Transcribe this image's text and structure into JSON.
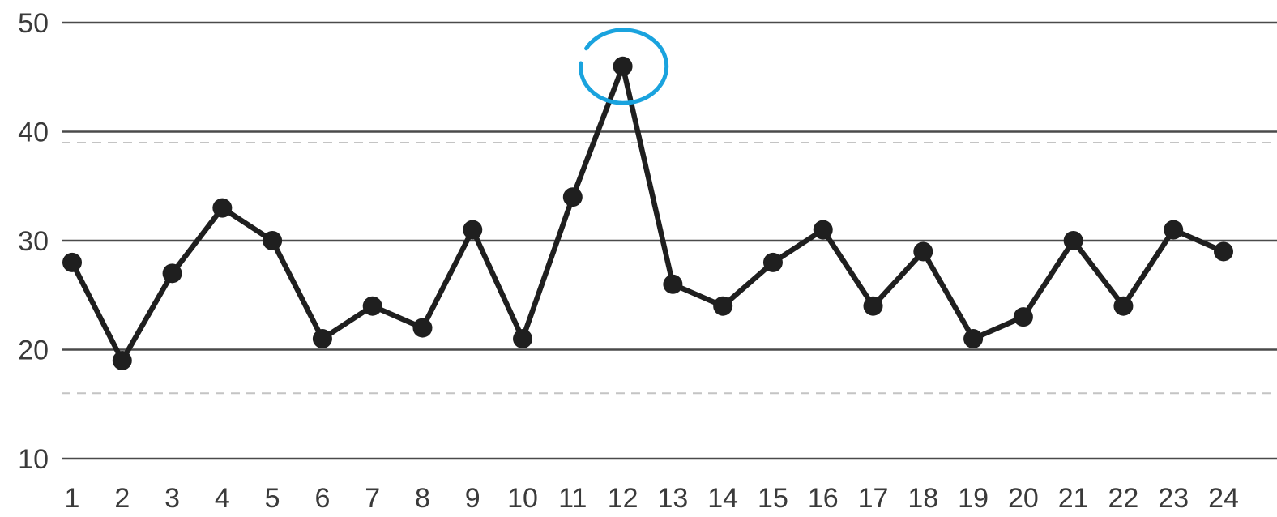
{
  "chart_data": {
    "type": "line",
    "title": "",
    "xlabel": "",
    "ylabel": "",
    "x": [
      1,
      2,
      3,
      4,
      5,
      6,
      7,
      8,
      9,
      10,
      11,
      12,
      13,
      14,
      15,
      16,
      17,
      18,
      19,
      20,
      21,
      22,
      23,
      24
    ],
    "x_tick_labels": [
      "1",
      "2",
      "3",
      "4",
      "5",
      "6",
      "7",
      "8",
      "9",
      "10",
      "11",
      "12",
      "13",
      "14",
      "15",
      "16",
      "17",
      "18",
      "19",
      "20",
      "21",
      "22",
      "23",
      "24"
    ],
    "series": [
      {
        "values": [
          28,
          19,
          27,
          33,
          30,
          21,
          24,
          22,
          31,
          21,
          34,
          46,
          26,
          24,
          28,
          31,
          24,
          29,
          21,
          23,
          30,
          24,
          31,
          29
        ]
      }
    ],
    "ylim": [
      10,
      50
    ],
    "y_ticks": [
      10,
      20,
      30,
      40,
      50
    ],
    "y_tick_labels": [
      "10",
      "20",
      "30",
      "40",
      "50"
    ],
    "grid": true,
    "reference_lines_dashed": [
      39,
      16
    ],
    "highlighted_point": {
      "x": 12,
      "y": 46
    },
    "colors": {
      "line": "#1f1f1f",
      "grid": "#4a4a4a",
      "dashed": "#c4c4c4",
      "highlight": "#1aa3de"
    }
  }
}
